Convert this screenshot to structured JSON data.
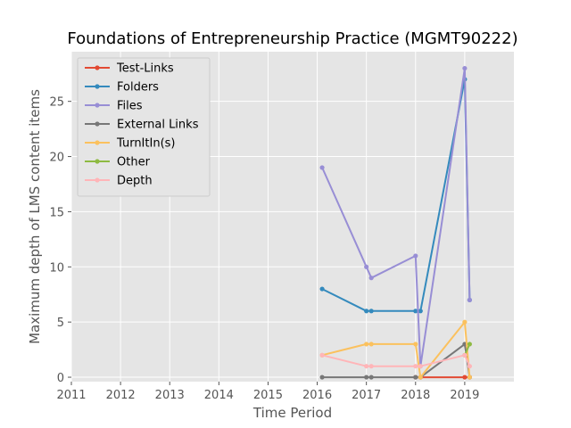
{
  "chart_data": {
    "type": "line",
    "title": "Foundations of Entrepreneurship Practice (MGMT90222)",
    "xlabel": "Time Period",
    "ylabel": "Maximum depth of LMS content items",
    "xlim": [
      2011,
      2020
    ],
    "ylim": [
      -0.4,
      29.5
    ],
    "xticks": [
      2011,
      2012,
      2013,
      2014,
      2015,
      2016,
      2017,
      2018,
      2019
    ],
    "yticks": [
      0,
      5,
      10,
      15,
      20,
      25
    ],
    "grid": true,
    "background": "#e5e5e5",
    "legend_position": "upper-left",
    "series": [
      {
        "name": "Test-Links",
        "color": "#e24a33",
        "x": [
          2018.0,
          2018.1,
          2019.0,
          2019.1
        ],
        "y": [
          0,
          0,
          0,
          0
        ]
      },
      {
        "name": "Folders",
        "color": "#348abd",
        "x": [
          2016.1,
          2017.0,
          2017.1,
          2018.0,
          2018.1,
          2019.0,
          2019.1
        ],
        "y": [
          8,
          6,
          6,
          6,
          6,
          27,
          7
        ]
      },
      {
        "name": "Files",
        "color": "#988ed5",
        "x": [
          2016.1,
          2017.0,
          2017.1,
          2018.0,
          2018.1,
          2019.0,
          2019.1
        ],
        "y": [
          19,
          10,
          9,
          11,
          1,
          28,
          7
        ]
      },
      {
        "name": "External Links",
        "color": "#777777",
        "x": [
          2016.1,
          2017.0,
          2017.1,
          2018.0,
          2018.1,
          2019.0,
          2019.1
        ],
        "y": [
          0,
          0,
          0,
          0,
          0,
          3,
          0
        ]
      },
      {
        "name": "TurnItIn(s)",
        "color": "#fbc15e",
        "x": [
          2016.1,
          2017.0,
          2017.1,
          2018.0,
          2018.1,
          2019.0,
          2019.1
        ],
        "y": [
          2,
          3,
          3,
          3,
          0,
          5,
          0
        ]
      },
      {
        "name": "Other",
        "color": "#8eba42",
        "x": [
          2019.0,
          2019.1
        ],
        "y": [
          2,
          3
        ]
      },
      {
        "name": "Depth",
        "color": "#ffb5b8",
        "x": [
          2016.1,
          2017.0,
          2017.1,
          2018.0,
          2018.1,
          2019.0,
          2019.1
        ],
        "y": [
          2,
          1,
          1,
          1,
          1,
          2,
          1
        ]
      }
    ]
  }
}
